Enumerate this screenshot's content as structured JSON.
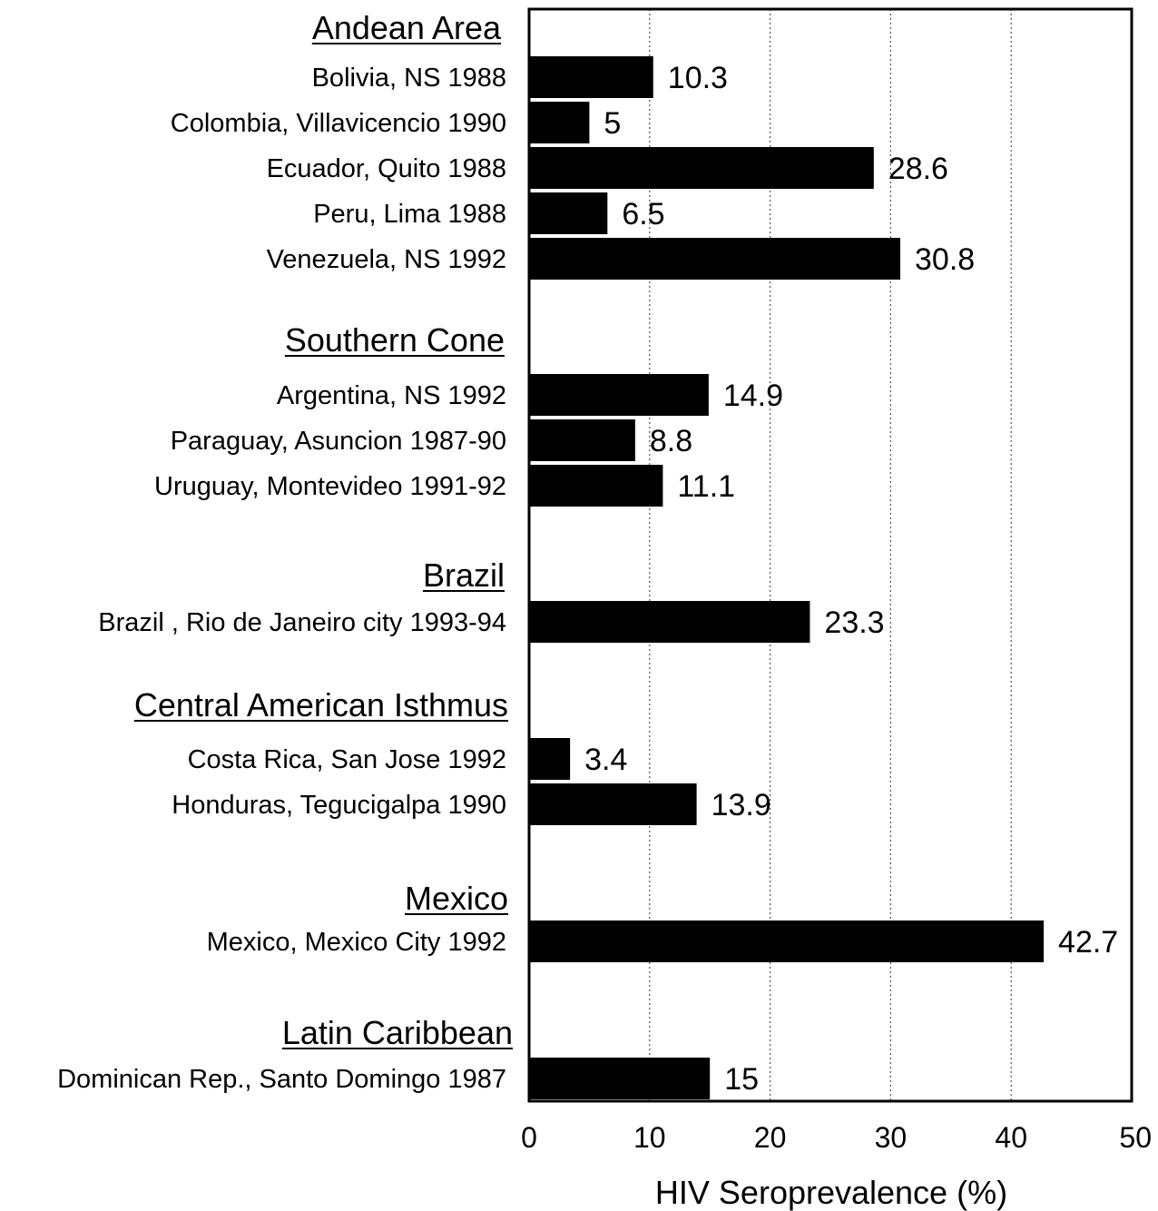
{
  "chart_data": {
    "type": "bar",
    "orientation": "horizontal",
    "xlabel": "HIV Seroprevalence (%)",
    "xlim": [
      0,
      50
    ],
    "xticks": [
      0,
      10,
      20,
      30,
      40,
      50
    ],
    "grid": "vertical dotted",
    "groups": [
      {
        "name": "Andean Area",
        "items": [
          {
            "label": "Bolivia, NS 1988",
            "value": 10.3,
            "value_label": "10.3"
          },
          {
            "label": "Colombia, Villavicencio 1990",
            "value": 5,
            "value_label": "5"
          },
          {
            "label": "Ecuador, Quito 1988",
            "value": 28.6,
            "value_label": "28.6"
          },
          {
            "label": "Peru, Lima 1988",
            "value": 6.5,
            "value_label": "6.5"
          },
          {
            "label": "Venezuela, NS 1992",
            "value": 30.8,
            "value_label": "30.8"
          }
        ]
      },
      {
        "name": "Southern Cone",
        "items": [
          {
            "label": "Argentina, NS 1992",
            "value": 14.9,
            "value_label": "14.9"
          },
          {
            "label": "Paraguay, Asuncion 1987-90",
            "value": 8.8,
            "value_label": "8.8"
          },
          {
            "label": "Uruguay, Montevideo 1991-92",
            "value": 11.1,
            "value_label": "11.1"
          }
        ]
      },
      {
        "name": "Brazil",
        "items": [
          {
            "label": "Brazil , Rio de Janeiro city 1993-94",
            "value": 23.3,
            "value_label": "23.3"
          }
        ]
      },
      {
        "name": "Central American Isthmus",
        "items": [
          {
            "label": "Costa Rica, San Jose 1992",
            "value": 3.4,
            "value_label": "3.4"
          },
          {
            "label": "Honduras, Tegucigalpa 1990",
            "value": 13.9,
            "value_label": "13.9"
          }
        ]
      },
      {
        "name": "Mexico",
        "items": [
          {
            "label": "Mexico, Mexico City 1992",
            "value": 42.7,
            "value_label": "42.7"
          }
        ]
      },
      {
        "name": "Latin Caribbean",
        "items": [
          {
            "label": "Dominican Rep., Santo Domingo 1987",
            "value": 15,
            "value_label": "15"
          }
        ]
      }
    ],
    "colors": {
      "bar": "#000000",
      "frame": "#000000",
      "grid": "#555555"
    }
  }
}
